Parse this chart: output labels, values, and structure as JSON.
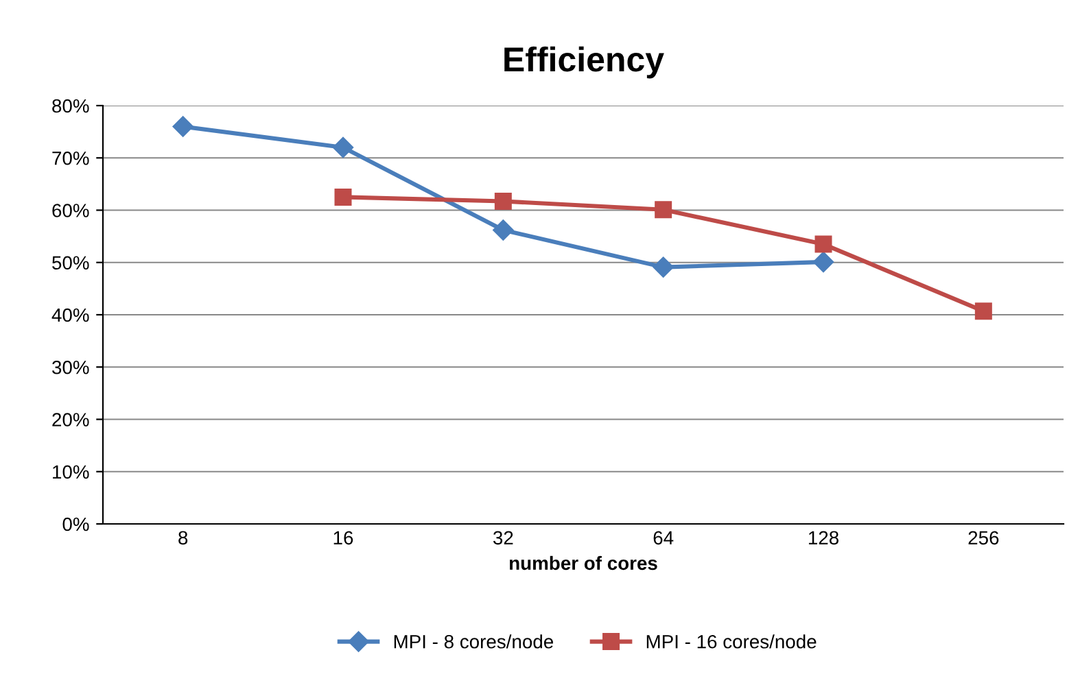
{
  "chart_data": {
    "type": "line",
    "title": "Efficiency",
    "xlabel": "number of cores",
    "categories": [
      "8",
      "16",
      "32",
      "64",
      "128",
      "256"
    ],
    "series": [
      {
        "name": "MPI - 8 cores/node",
        "color": "#4a7ebb",
        "marker": "diamond",
        "values": [
          76,
          72,
          56.2,
          49.1,
          50.1,
          null
        ]
      },
      {
        "name": "MPI - 16 cores/node",
        "color": "#be4b48",
        "marker": "square",
        "values": [
          null,
          62.5,
          61.7,
          60.1,
          53.5,
          40.7
        ]
      }
    ],
    "ylim": [
      0,
      80
    ],
    "yticks": [
      {
        "value": 0,
        "label": "0%"
      },
      {
        "value": 10,
        "label": "10%"
      },
      {
        "value": 20,
        "label": "20%"
      },
      {
        "value": 30,
        "label": "30%"
      },
      {
        "value": 40,
        "label": "40%"
      },
      {
        "value": 50,
        "label": "50%"
      },
      {
        "value": 60,
        "label": "60%"
      },
      {
        "value": 70,
        "label": "70%"
      },
      {
        "value": 80,
        "label": "80%"
      }
    ],
    "grid": "y",
    "legend": "bottom",
    "line_style": "solid"
  }
}
